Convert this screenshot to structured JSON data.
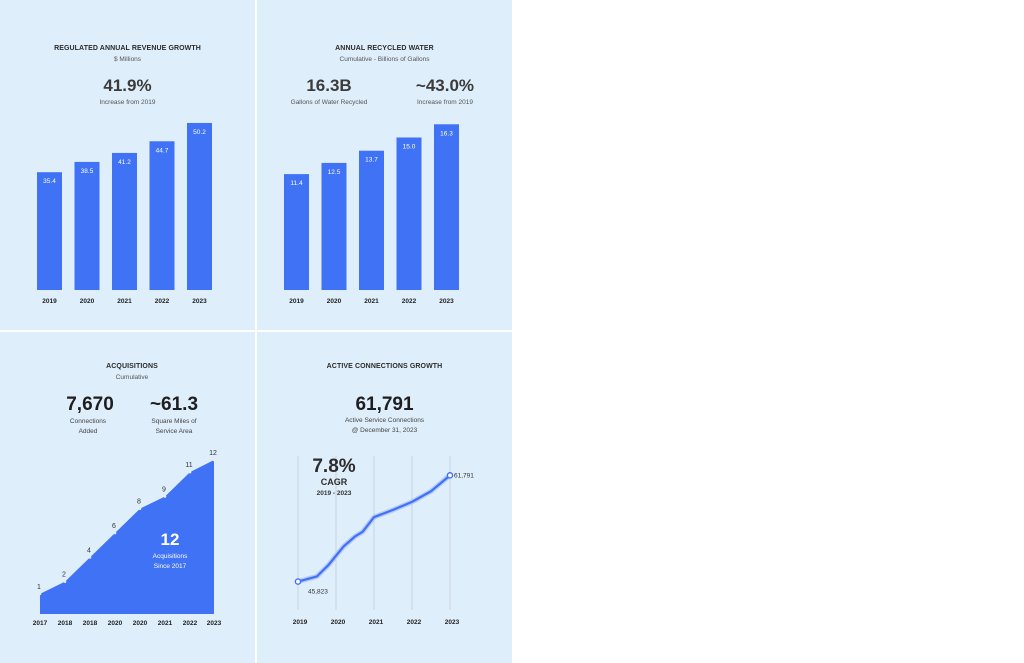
{
  "panels": {
    "revenue": {
      "title": "REGULATED ANNUAL REVENUE GROWTH",
      "subtitle": "$ Millions",
      "stat_value": "41.9%",
      "stat_caption": "Increase from 2019"
    },
    "water": {
      "title": "ANNUAL RECYCLED WATER",
      "subtitle": "Cumulative - Billions of Gallons",
      "stat1_value": "16.3B",
      "stat1_caption": "Gallons of Water Recycled",
      "stat2_value": "~43.0%",
      "stat2_caption": "Increase from 2019"
    },
    "acquisitions": {
      "title": "ACQUISITIONS",
      "subtitle": "Cumulative",
      "stat1_value": "7,670",
      "stat1_caption_line1": "Connections",
      "stat1_caption_line2": "Added",
      "stat2_value": "~61.3",
      "stat2_caption_line1": "Square Miles of",
      "stat2_caption_line2": "Service Area",
      "inner_value": "12",
      "inner_caption_line1": "Acquisitions",
      "inner_caption_line2": "Since 2017"
    },
    "connections": {
      "title": "ACTIVE CONNECTIONS GROWTH",
      "stat_value": "61,791",
      "stat_caption_line1": "Active Service Connections",
      "stat_caption_line2": "@ December 31, 2023",
      "cagr_value": "7.8%",
      "cagr_label": "CAGR",
      "cagr_range": "2019 - 2023"
    }
  },
  "chart_data": [
    {
      "type": "bar",
      "categories": [
        "2019",
        "2020",
        "2021",
        "2022",
        "2023"
      ],
      "values": [
        35.4,
        38.5,
        41.2,
        44.7,
        50.2
      ],
      "title": "REGULATED ANNUAL REVENUE GROWTH",
      "ylim": [
        0,
        55
      ],
      "color": "#3f72f5"
    },
    {
      "type": "bar",
      "categories": [
        "2019",
        "2020",
        "2021",
        "2022",
        "2023"
      ],
      "values": [
        11.4,
        12.5,
        13.7,
        15.0,
        16.3
      ],
      "title": "ANNUAL RECYCLED WATER",
      "ylim": [
        0,
        18
      ],
      "color": "#3f72f5"
    },
    {
      "type": "area",
      "categories": [
        "2017",
        "2018",
        "2018",
        "2020",
        "2020",
        "2021",
        "2022",
        "2023"
      ],
      "values": [
        1,
        2,
        4,
        6,
        8,
        9,
        11,
        12
      ],
      "title": "ACQUISITIONS",
      "ylim": [
        0,
        12
      ],
      "color": "#3f72f5"
    },
    {
      "type": "line",
      "categories": [
        "2019",
        "2020",
        "2021",
        "2022",
        "2023"
      ],
      "points": [
        {
          "x": 2019.0,
          "y": 45823
        },
        {
          "x": 2019.5,
          "y": 46600
        },
        {
          "x": 2019.8,
          "y": 48300
        },
        {
          "x": 2020.2,
          "y": 51100
        },
        {
          "x": 2020.5,
          "y": 52600
        },
        {
          "x": 2020.7,
          "y": 53300
        },
        {
          "x": 2021.0,
          "y": 55500
        },
        {
          "x": 2021.5,
          "y": 56600
        },
        {
          "x": 2022.0,
          "y": 57800
        },
        {
          "x": 2022.5,
          "y": 59400
        },
        {
          "x": 2023.0,
          "y": 61791
        }
      ],
      "point_labels": {
        "start": "45,823",
        "end": "61,791"
      },
      "title": "ACTIVE CONNECTIONS GROWTH",
      "ylim": [
        42000,
        65000
      ],
      "grid": "vertical",
      "color": "#3f72f5"
    }
  ]
}
